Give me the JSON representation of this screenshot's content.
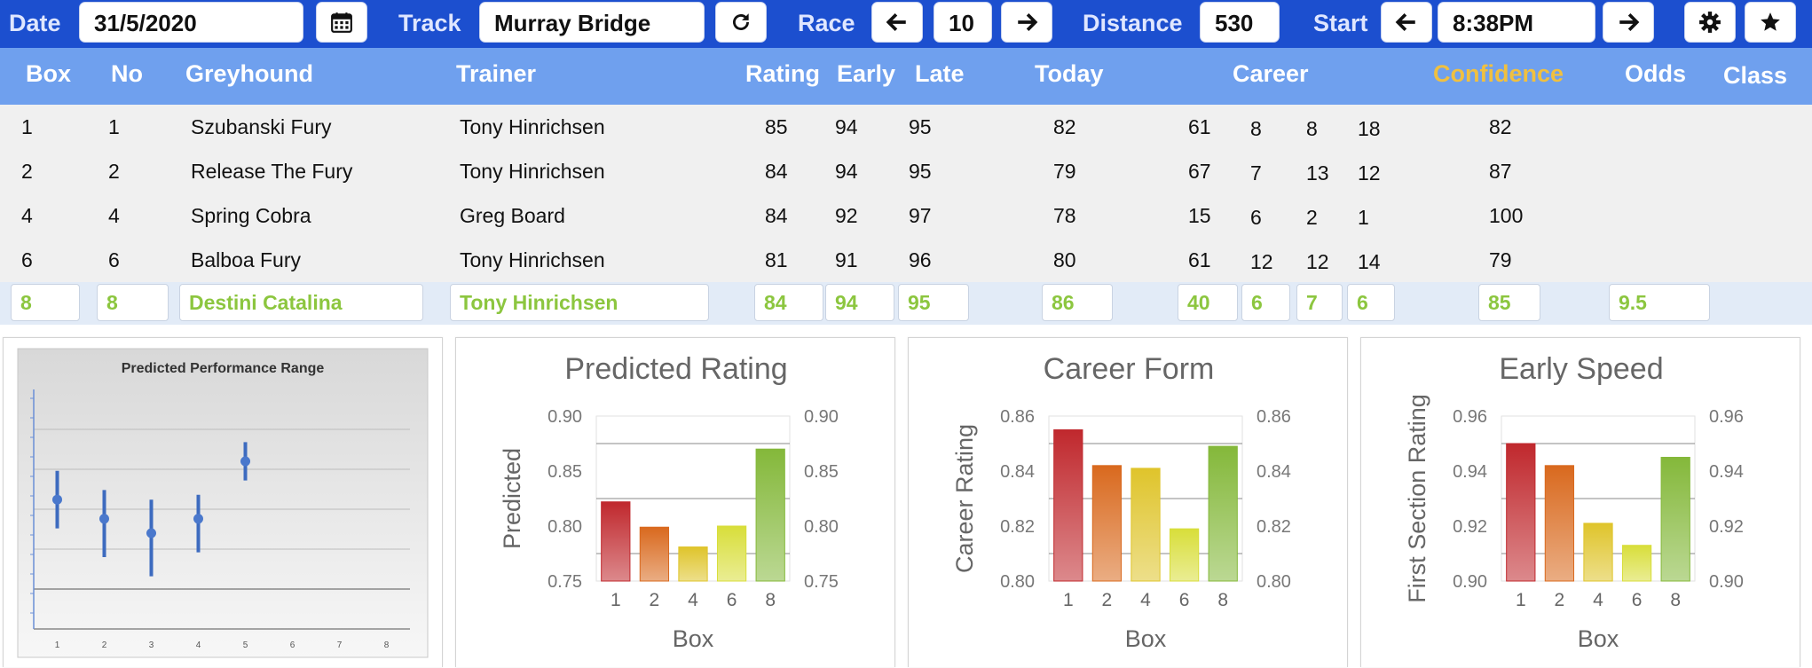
{
  "toolbar": {
    "date_label": "Date",
    "date_value": "31/5/2020",
    "track_label": "Track",
    "track_value": "Murray Bridge",
    "race_label": "Race",
    "race_value": "10",
    "distance_label": "Distance",
    "distance_value": "530",
    "start_label": "Start",
    "start_value": "8:38PM",
    "icons": {
      "calendar": "calendar-icon",
      "refresh": "refresh-icon",
      "prev": "arrow-left-icon",
      "next": "arrow-right-icon",
      "settings": "gear-icon",
      "favorite": "star-icon"
    }
  },
  "table": {
    "headers": {
      "box": "Box",
      "no": "No",
      "greyhound": "Greyhound",
      "trainer": "Trainer",
      "rating": "Rating",
      "early": "Early",
      "late": "Late",
      "today": "Today",
      "career": "Career",
      "confidence": "Confidence",
      "odds": "Odds",
      "class": "Class"
    },
    "rows": [
      {
        "box": "1",
        "no": "1",
        "greyhound": "Szubanski Fury",
        "trainer": "Tony Hinrichsen",
        "rating": "85",
        "early": "94",
        "late": "95",
        "today": "82",
        "career": [
          "61",
          "8",
          "8",
          "18"
        ],
        "confidence": "82"
      },
      {
        "box": "2",
        "no": "2",
        "greyhound": "Release The Fury",
        "trainer": "Tony Hinrichsen",
        "rating": "84",
        "early": "94",
        "late": "95",
        "today": "79",
        "career": [
          "67",
          "7",
          "13",
          "12"
        ],
        "confidence": "87"
      },
      {
        "box": "4",
        "no": "4",
        "greyhound": "Spring Cobra",
        "trainer": "Greg Board",
        "rating": "84",
        "early": "92",
        "late": "97",
        "today": "78",
        "career": [
          "15",
          "6",
          "2",
          "1"
        ],
        "confidence": "100"
      },
      {
        "box": "6",
        "no": "6",
        "greyhound": "Balboa Fury",
        "trainer": "Tony Hinrichsen",
        "rating": "81",
        "early": "91",
        "late": "96",
        "today": "80",
        "career": [
          "61",
          "12",
          "12",
          "14"
        ],
        "confidence": "79"
      }
    ],
    "selected": {
      "box": "8",
      "no": "8",
      "greyhound": "Destini Catalina",
      "trainer": "Tony Hinrichsen",
      "rating": "84",
      "early": "94",
      "late": "95",
      "today": "86",
      "career": [
        "40",
        "6",
        "7",
        "6"
      ],
      "confidence": "85",
      "odds": "9.5"
    }
  },
  "colors": {
    "toolbar": "#1c4fcf",
    "header": "#6fa0ee",
    "confidence_header": "#f0c040",
    "selected_text": "#8cc63f",
    "bar_colors": [
      "#c0282d",
      "#d9691e",
      "#dfc42b",
      "#d8de3a",
      "#84b83a"
    ]
  },
  "chart_data": [
    {
      "type": "scatter",
      "title": "Predicted Performance Range",
      "x": [
        1,
        2,
        3,
        4,
        5,
        6,
        7,
        8
      ],
      "xticks": [
        "1",
        "2",
        "3",
        "4",
        "5",
        "6",
        "7",
        "8"
      ],
      "points": [
        {
          "x": 1,
          "mid": 0.835,
          "low": 0.805,
          "high": 0.865
        },
        {
          "x": 2,
          "mid": 0.815,
          "low": 0.775,
          "high": 0.845
        },
        {
          "x": 3,
          "mid": 0.8,
          "low": 0.755,
          "high": 0.835
        },
        {
          "x": 4,
          "mid": 0.815,
          "low": 0.78,
          "high": 0.84
        },
        {
          "x": 5,
          "mid": 0.875,
          "low": 0.855,
          "high": 0.895
        }
      ],
      "ylim": [
        0.7,
        0.95
      ],
      "grid": true,
      "legend": "none"
    },
    {
      "type": "bar",
      "title": "Predicted Rating",
      "categories": [
        "1",
        "2",
        "4",
        "6",
        "8"
      ],
      "values": [
        0.822,
        0.799,
        0.781,
        0.8,
        0.87
      ],
      "xlabel": "Box",
      "ylabel": "Predicted",
      "ylim": [
        0.75,
        0.9
      ],
      "yticks": [
        "0.75",
        "0.80",
        "0.85",
        "0.90"
      ],
      "grid_lines": [
        0.775,
        0.825,
        0.875
      ]
    },
    {
      "type": "bar",
      "title": "Career Form",
      "categories": [
        "1",
        "2",
        "4",
        "6",
        "8"
      ],
      "values": [
        0.855,
        0.842,
        0.841,
        0.819,
        0.849
      ],
      "xlabel": "Box",
      "ylabel": "Career Rating",
      "ylim": [
        0.8,
        0.86
      ],
      "yticks": [
        "0.80",
        "0.82",
        "0.84",
        "0.86"
      ],
      "grid_lines": [
        0.81,
        0.83,
        0.85
      ]
    },
    {
      "type": "bar",
      "title": "Early Speed",
      "categories": [
        "1",
        "2",
        "4",
        "6",
        "8"
      ],
      "values": [
        0.95,
        0.942,
        0.921,
        0.913,
        0.945
      ],
      "xlabel": "Box",
      "ylabel": "First Section Rating",
      "ylim": [
        0.9,
        0.96
      ],
      "yticks": [
        "0.90",
        "0.92",
        "0.94",
        "0.96"
      ],
      "grid_lines": [
        0.91,
        0.93,
        0.95
      ]
    }
  ]
}
